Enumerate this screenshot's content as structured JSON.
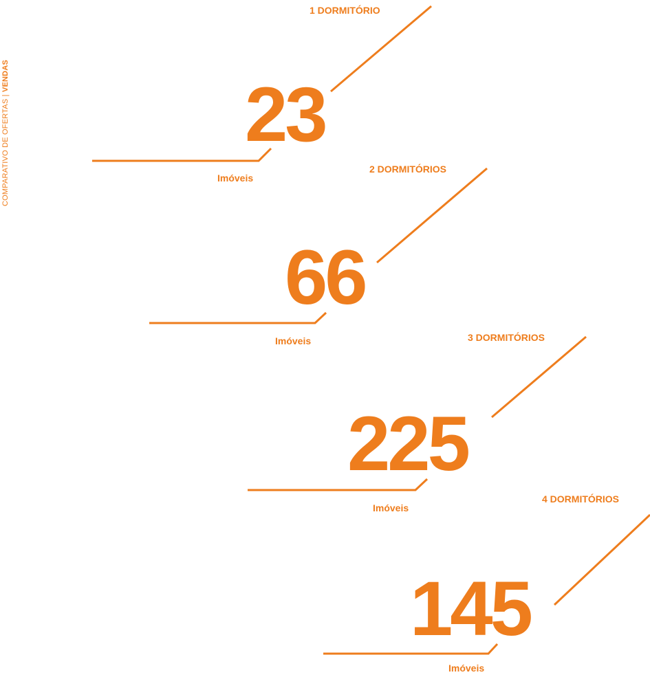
{
  "sidebar": {
    "prefix": "COMPARATIVO DE OFERTAS",
    "separator": " | ",
    "emphasis": "VENDAS"
  },
  "colors": {
    "accent": "#ee7d1d"
  },
  "groups": [
    {
      "category": "1 DORMITÓRIO",
      "count": "23",
      "unit": "Imóveis"
    },
    {
      "category": "2 DORMITÓRIOS",
      "count": "66",
      "unit": "Imóveis"
    },
    {
      "category": "3 DORMITÓRIOS",
      "count": "225",
      "unit": "Imóveis"
    },
    {
      "category": "4 DORMITÓRIOS",
      "count": "145",
      "unit": "Imóveis"
    }
  ]
}
